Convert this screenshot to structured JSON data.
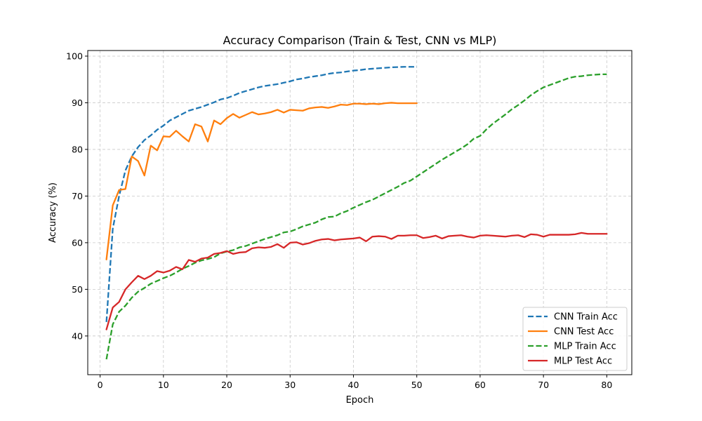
{
  "chart_data": {
    "type": "line",
    "title": "Accuracy Comparison (Train & Test, CNN vs MLP)",
    "xlabel": "Epoch",
    "ylabel": "Accuracy (%)",
    "xlim": [
      -1.95,
      83.95
    ],
    "ylim": [
      31.7,
      101.2
    ],
    "xticks": [
      0,
      10,
      20,
      30,
      40,
      50,
      60,
      70,
      80
    ],
    "yticks": [
      40,
      50,
      60,
      70,
      80,
      90,
      100
    ],
    "grid": true,
    "legend_position": "lower-right",
    "series": [
      {
        "name": "CNN Train Acc",
        "color": "#1f77b4",
        "dash": "dashed",
        "x": [
          1,
          2,
          3,
          4,
          5,
          6,
          7,
          8,
          9,
          10,
          11,
          12,
          13,
          14,
          15,
          16,
          17,
          18,
          19,
          20,
          21,
          22,
          23,
          24,
          25,
          26,
          27,
          28,
          29,
          30,
          31,
          32,
          33,
          34,
          35,
          36,
          37,
          38,
          39,
          40,
          41,
          42,
          43,
          44,
          45,
          46,
          47,
          48,
          49,
          50
        ],
        "y": [
          43,
          63,
          70,
          75.5,
          78.5,
          80.5,
          82,
          83,
          84.2,
          85.1,
          86.2,
          86.9,
          87.6,
          88.3,
          88.7,
          89.1,
          89.6,
          90.1,
          90.7,
          91,
          91.5,
          92.1,
          92.5,
          92.9,
          93.3,
          93.6,
          93.8,
          94,
          94.3,
          94.6,
          95,
          95.2,
          95.5,
          95.7,
          95.9,
          96.2,
          96.4,
          96.5,
          96.7,
          96.9,
          97,
          97.2,
          97.3,
          97.4,
          97.5,
          97.6,
          97.65,
          97.7,
          97.7,
          97.7
        ]
      },
      {
        "name": "CNN Test Acc",
        "color": "#ff7f0e",
        "dash": "solid",
        "x": [
          1,
          2,
          3,
          4,
          5,
          6,
          7,
          8,
          9,
          10,
          11,
          12,
          13,
          14,
          15,
          16,
          17,
          18,
          19,
          20,
          21,
          22,
          23,
          24,
          25,
          26,
          27,
          28,
          29,
          30,
          31,
          32,
          33,
          34,
          35,
          36,
          37,
          38,
          39,
          40,
          41,
          42,
          43,
          44,
          45,
          46,
          47,
          48,
          49,
          50
        ],
        "y": [
          56.4,
          68,
          71.3,
          71.5,
          78.5,
          77.5,
          74.4,
          80.8,
          79.8,
          82.8,
          82.7,
          84,
          82.8,
          81.7,
          85.4,
          84.9,
          81.7,
          86.2,
          85.4,
          86.7,
          87.6,
          86.8,
          87.4,
          88,
          87.5,
          87.7,
          88,
          88.5,
          87.9,
          88.5,
          88.4,
          88.3,
          88.8,
          89,
          89.1,
          88.9,
          89.2,
          89.6,
          89.5,
          89.8,
          89.8,
          89.7,
          89.8,
          89.7,
          89.9,
          90,
          89.9,
          89.9,
          89.9,
          89.9
        ]
      },
      {
        "name": "MLP Train Acc",
        "color": "#2ca02c",
        "dash": "dashed",
        "x": [
          1,
          2,
          3,
          4,
          5,
          6,
          7,
          8,
          9,
          10,
          11,
          12,
          13,
          14,
          15,
          16,
          17,
          18,
          19,
          20,
          21,
          22,
          23,
          24,
          25,
          26,
          27,
          28,
          29,
          30,
          31,
          32,
          33,
          34,
          35,
          36,
          37,
          38,
          39,
          40,
          41,
          42,
          43,
          44,
          45,
          46,
          47,
          48,
          49,
          50,
          51,
          52,
          53,
          54,
          55,
          56,
          57,
          58,
          59,
          60,
          61,
          62,
          63,
          64,
          65,
          66,
          67,
          68,
          69,
          70,
          71,
          72,
          73,
          74,
          75,
          76,
          77,
          78,
          79,
          80
        ],
        "y": [
          35,
          42.5,
          45.2,
          46.5,
          48.2,
          49.5,
          50.3,
          51.2,
          51.8,
          52.4,
          52.9,
          53.6,
          54.4,
          55,
          55.7,
          56.2,
          56.5,
          56.9,
          57.7,
          58.1,
          58.4,
          59,
          59.3,
          59.8,
          60.3,
          60.8,
          61.2,
          61.6,
          62.2,
          62.4,
          62.9,
          63.5,
          63.9,
          64.3,
          65,
          65.5,
          65.6,
          66.3,
          66.8,
          67.5,
          68.1,
          68.7,
          69.2,
          69.9,
          70.6,
          71.3,
          72,
          72.8,
          73.3,
          74.2,
          75.1,
          76,
          76.9,
          77.8,
          78.6,
          79.4,
          80.2,
          81.1,
          82.3,
          82.9,
          84.3,
          85.5,
          86.5,
          87.5,
          88.6,
          89.5,
          90.5,
          91.6,
          92.5,
          93.3,
          93.8,
          94.3,
          94.8,
          95.3,
          95.6,
          95.7,
          95.9,
          96,
          96.1,
          96.1
        ]
      },
      {
        "name": "MLP Test Acc",
        "color": "#d62728",
        "dash": "solid",
        "x": [
          1,
          2,
          3,
          4,
          5,
          6,
          7,
          8,
          9,
          10,
          11,
          12,
          13,
          14,
          15,
          16,
          17,
          18,
          19,
          20,
          21,
          22,
          23,
          24,
          25,
          26,
          27,
          28,
          29,
          30,
          31,
          32,
          33,
          34,
          35,
          36,
          37,
          38,
          39,
          40,
          41,
          42,
          43,
          44,
          45,
          46,
          47,
          48,
          49,
          50,
          51,
          52,
          53,
          54,
          55,
          56,
          57,
          58,
          59,
          60,
          61,
          62,
          63,
          64,
          65,
          66,
          67,
          68,
          69,
          70,
          71,
          72,
          73,
          74,
          75,
          76,
          77,
          78,
          79,
          80
        ],
        "y": [
          41.4,
          46.1,
          47.3,
          50,
          51.5,
          52.9,
          52.2,
          52.9,
          53.9,
          53.6,
          54,
          54.8,
          54.3,
          56.3,
          55.9,
          56.6,
          56.8,
          57.6,
          57.8,
          58.2,
          57.6,
          57.9,
          58,
          58.8,
          59,
          58.9,
          59.1,
          59.7,
          58.9,
          60,
          60.1,
          59.6,
          59.9,
          60.4,
          60.7,
          60.8,
          60.5,
          60.7,
          60.8,
          60.9,
          61.1,
          60.3,
          61.3,
          61.4,
          61.3,
          60.8,
          61.5,
          61.5,
          61.6,
          61.6,
          61,
          61.2,
          61.5,
          60.9,
          61.4,
          61.5,
          61.6,
          61.3,
          61.1,
          61.5,
          61.6,
          61.5,
          61.4,
          61.3,
          61.5,
          61.6,
          61.2,
          61.8,
          61.7,
          61.3,
          61.7,
          61.7,
          61.7,
          61.7,
          61.8,
          62.1,
          61.9,
          61.9,
          61.9,
          61.9
        ]
      }
    ]
  }
}
